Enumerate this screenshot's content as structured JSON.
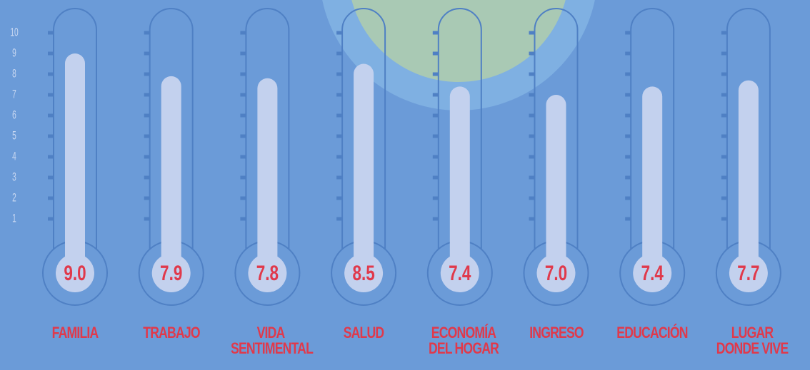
{
  "chart_data": {
    "type": "thermometer",
    "categories": [
      "FAMILIA",
      "TRABAJO",
      "VIDA SENTIMENTAL",
      "SALUD",
      "ECONOMÍA DEL HOGAR",
      "INGRESO",
      "EDUCACIÓN",
      "LUGAR DONDE VIVE"
    ],
    "values": [
      9.0,
      7.9,
      7.8,
      8.5,
      7.4,
      7.0,
      7.4,
      7.7
    ],
    "value_labels": [
      "9.0",
      "7.9",
      "7.8",
      "8.5",
      "7.4",
      "7.0",
      "7.4",
      "7.7"
    ],
    "color": "#c3d1ee",
    "ylim": [
      0,
      10
    ],
    "yticks": [
      1,
      2,
      3,
      4,
      5,
      6,
      7,
      8,
      9,
      10
    ]
  }
}
